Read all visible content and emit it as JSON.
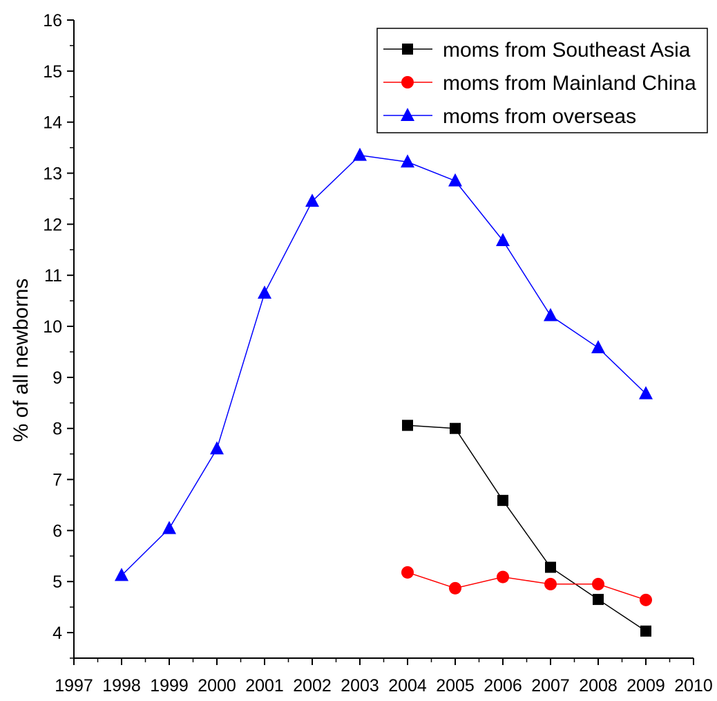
{
  "chart_data": {
    "type": "line",
    "title": "",
    "xlabel": "",
    "ylabel": "% of all newborns",
    "xlim": [
      1997,
      2010
    ],
    "ylim": [
      3.5,
      16
    ],
    "x_ticks": [
      1997,
      1998,
      1999,
      2000,
      2001,
      2002,
      2003,
      2004,
      2005,
      2006,
      2007,
      2008,
      2009,
      2010
    ],
    "y_ticks": [
      4,
      5,
      6,
      7,
      8,
      9,
      10,
      11,
      12,
      13,
      14,
      15,
      16
    ],
    "grid": false,
    "legend_position": "top-right",
    "series": [
      {
        "name": "moms from Southeast Asia",
        "color": "#000000",
        "marker": "square",
        "x": [
          2004,
          2005,
          2006,
          2007,
          2008,
          2009
        ],
        "y": [
          8.06,
          8.0,
          6.59,
          5.28,
          4.65,
          4.03
        ]
      },
      {
        "name": "moms from Mainland China",
        "color": "#ff0000",
        "marker": "circle",
        "x": [
          2004,
          2005,
          2006,
          2007,
          2008,
          2009
        ],
        "y": [
          5.18,
          4.87,
          5.09,
          4.95,
          4.95,
          4.64
        ]
      },
      {
        "name": "moms from overseas",
        "color": "#0000ff",
        "marker": "triangle",
        "x": [
          1998,
          1999,
          2000,
          2001,
          2002,
          2003,
          2004,
          2005,
          2006,
          2007,
          2008,
          2009
        ],
        "y": [
          5.12,
          6.04,
          7.6,
          10.65,
          12.45,
          13.35,
          13.22,
          12.85,
          11.68,
          10.21,
          9.58,
          8.68
        ]
      }
    ]
  }
}
